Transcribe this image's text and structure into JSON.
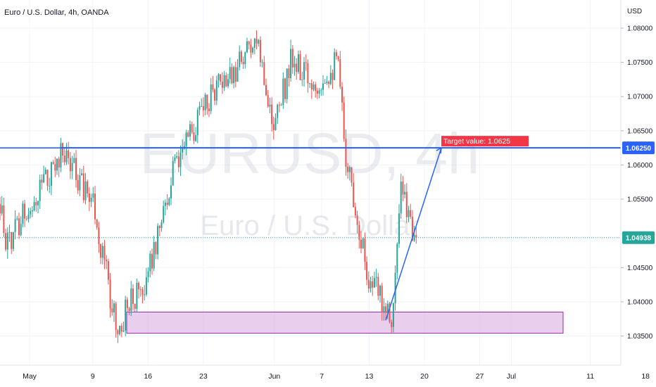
{
  "header": {
    "title": "Euro / U.S. Dollar, 4h, OANDA"
  },
  "watermark": {
    "symbol": "EURUSD, 4h",
    "description": "Euro / U.S. Dollar"
  },
  "price_scale": {
    "currency": "USD"
  },
  "badges": {
    "current_price": "1.04938",
    "target_price": "1.06250"
  },
  "annotations": {
    "target_label": "Target value: 1.0625"
  },
  "colors": {
    "up": "#26a69a",
    "down": "#ef5350",
    "target_line": "#2962ff",
    "zone_fill": "#e1bee7",
    "zone_border": "#9c27b0",
    "badge": "#f23645",
    "current_badge": "#26a69a"
  },
  "chart_data": {
    "type": "candlestick",
    "ylim": [
      1.0345,
      1.0815
    ],
    "y_ticks": [
      "1.08000",
      "1.07500",
      "1.07000",
      "1.06500",
      "1.06000",
      "1.05500",
      "1.04500",
      "1.04000",
      "1.03500"
    ],
    "x_ticks": [
      "May",
      "9",
      "16",
      "23",
      "Jun",
      "7",
      "13",
      "20",
      "27",
      "Jul",
      "11",
      "18"
    ],
    "current_price": 1.04938,
    "target_price": 1.0625,
    "support_zone": [
      1.0354,
      1.0385
    ],
    "projection": {
      "from": 1.0373,
      "to": 1.0625
    },
    "anchors": [
      {
        "date": "2022-04-26",
        "price": 1.065
      },
      {
        "date": "2022-04-28",
        "price": 1.048
      },
      {
        "date": "2022-05-05",
        "price": 1.062
      },
      {
        "date": "2022-05-09",
        "price": 1.055
      },
      {
        "date": "2022-05-12",
        "price": 1.036
      },
      {
        "date": "2022-05-16",
        "price": 1.044
      },
      {
        "date": "2022-05-19",
        "price": 1.058
      },
      {
        "date": "2022-05-23",
        "price": 1.069
      },
      {
        "date": "2022-05-27",
        "price": 1.074
      },
      {
        "date": "2022-05-30",
        "price": 1.078
      },
      {
        "date": "2022-06-01",
        "price": 1.065
      },
      {
        "date": "2022-06-03",
        "price": 1.075
      },
      {
        "date": "2022-06-06",
        "price": 1.072
      },
      {
        "date": "2022-06-09",
        "price": 1.075
      },
      {
        "date": "2022-06-10",
        "price": 1.062
      },
      {
        "date": "2022-06-13",
        "price": 1.043
      },
      {
        "date": "2022-06-15",
        "price": 1.04
      },
      {
        "date": "2022-06-16",
        "price": 1.038
      },
      {
        "date": "2022-06-17",
        "price": 1.056
      },
      {
        "date": "2022-06-19",
        "price": 1.0494
      }
    ]
  }
}
